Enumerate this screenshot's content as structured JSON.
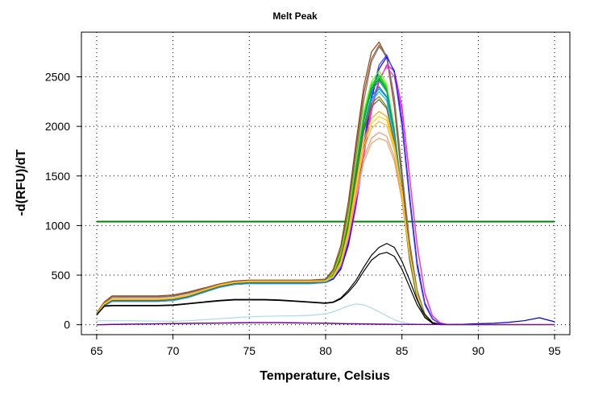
{
  "chart_data": {
    "type": "line",
    "title": "Melt Peak",
    "xlabel": "Temperature, Celsius",
    "ylabel": "-d(RFU)/dT",
    "xlim": [
      64,
      96
    ],
    "ylim": [
      -100,
      2950
    ],
    "xticks": [
      65,
      70,
      75,
      80,
      85,
      90,
      95
    ],
    "yticks": [
      0,
      500,
      1000,
      1500,
      2000,
      2500
    ],
    "grid": true,
    "legend": "none",
    "threshold": {
      "y": 1040,
      "x_range": [
        65,
        95
      ],
      "color": "#008000"
    },
    "x": [
      65,
      65.5,
      66,
      67,
      68,
      69,
      70,
      71,
      72,
      73,
      74,
      75,
      76,
      77,
      78,
      79,
      80,
      80.5,
      81,
      81.5,
      82,
      82.5,
      83,
      83.5,
      84,
      84.5,
      85,
      85.5,
      86,
      86.5,
      87,
      87.5,
      88,
      89,
      90,
      91,
      92,
      93,
      94,
      95
    ],
    "series": [
      {
        "color": "#8b4513",
        "values": [
          120,
          230,
          290,
          290,
          290,
          290,
          300,
          330,
          370,
          410,
          440,
          450,
          450,
          450,
          450,
          450,
          460,
          560,
          800,
          1250,
          1850,
          2400,
          2750,
          2850,
          2700,
          2200,
          1450,
          750,
          300,
          90,
          20,
          5,
          0,
          0,
          0,
          0,
          0,
          0,
          0,
          0
        ]
      },
      {
        "color": "#a0522d",
        "values": [
          115,
          220,
          280,
          280,
          280,
          280,
          290,
          320,
          365,
          405,
          435,
          445,
          445,
          445,
          445,
          445,
          455,
          540,
          760,
          1180,
          1780,
          2330,
          2680,
          2820,
          2690,
          2230,
          1500,
          800,
          330,
          100,
          25,
          5,
          0,
          0,
          0,
          0,
          0,
          0,
          0,
          0
        ]
      },
      {
        "color": "#808080",
        "values": [
          110,
          215,
          275,
          275,
          275,
          275,
          285,
          315,
          360,
          400,
          430,
          440,
          440,
          440,
          440,
          440,
          450,
          520,
          730,
          1120,
          1700,
          2250,
          2650,
          2800,
          2720,
          2300,
          1560,
          840,
          350,
          110,
          25,
          5,
          0,
          0,
          0,
          0,
          0,
          0,
          0,
          0
        ]
      },
      {
        "color": "#ff00ff",
        "values": [
          100,
          200,
          250,
          250,
          250,
          250,
          260,
          290,
          340,
          390,
          420,
          430,
          430,
          430,
          430,
          430,
          440,
          470,
          560,
          800,
          1200,
          1700,
          2150,
          2450,
          2620,
          2560,
          2200,
          1500,
          800,
          320,
          90,
          20,
          0,
          0,
          0,
          0,
          0,
          0,
          0,
          0
        ]
      },
      {
        "color": "#ff33cc",
        "values": [
          100,
          200,
          250,
          250,
          250,
          250,
          260,
          290,
          340,
          390,
          420,
          430,
          430,
          430,
          430,
          430,
          440,
          480,
          580,
          830,
          1250,
          1750,
          2200,
          2480,
          2600,
          2500,
          2150,
          1480,
          790,
          310,
          85,
          20,
          0,
          0,
          0,
          0,
          0,
          0,
          0,
          0
        ]
      },
      {
        "color": "#0000ff",
        "values": [
          95,
          195,
          245,
          245,
          245,
          245,
          255,
          285,
          335,
          385,
          415,
          425,
          425,
          425,
          425,
          425,
          425,
          460,
          560,
          820,
          1250,
          1780,
          2270,
          2580,
          2700,
          2560,
          2050,
          1300,
          620,
          220,
          60,
          10,
          0,
          0,
          0,
          0,
          0,
          0,
          0,
          0
        ]
      },
      {
        "color": "#4040ff",
        "values": [
          95,
          195,
          245,
          245,
          245,
          245,
          255,
          285,
          335,
          385,
          415,
          425,
          425,
          425,
          425,
          425,
          430,
          470,
          580,
          860,
          1300,
          1830,
          2320,
          2620,
          2720,
          2540,
          2000,
          1250,
          580,
          200,
          55,
          10,
          0,
          0,
          0,
          0,
          0,
          0,
          0,
          0
        ]
      },
      {
        "color": "#00cc00",
        "values": [
          100,
          200,
          240,
          240,
          240,
          240,
          250,
          280,
          330,
          380,
          410,
          420,
          420,
          420,
          420,
          420,
          435,
          500,
          680,
          1050,
          1600,
          2100,
          2400,
          2500,
          2380,
          1950,
          1300,
          650,
          250,
          70,
          15,
          0,
          0,
          0,
          0,
          0,
          0,
          0,
          0,
          0
        ]
      },
      {
        "color": "#00e000",
        "values": [
          100,
          200,
          240,
          240,
          240,
          240,
          250,
          280,
          330,
          380,
          410,
          420,
          420,
          420,
          420,
          420,
          440,
          510,
          700,
          1080,
          1620,
          2120,
          2420,
          2520,
          2400,
          1980,
          1320,
          670,
          260,
          75,
          15,
          0,
          0,
          0,
          0,
          0,
          0,
          0,
          0,
          0
        ]
      },
      {
        "color": "#33cc33",
        "values": [
          100,
          200,
          240,
          240,
          240,
          240,
          250,
          280,
          330,
          380,
          410,
          420,
          420,
          420,
          420,
          420,
          435,
          500,
          690,
          1060,
          1600,
          2100,
          2400,
          2500,
          2380,
          1950,
          1310,
          660,
          255,
          70,
          15,
          0,
          0,
          0,
          0,
          0,
          0,
          0,
          0,
          0
        ]
      },
      {
        "color": "#66ff00",
        "values": [
          100,
          200,
          240,
          240,
          240,
          240,
          250,
          280,
          330,
          380,
          410,
          420,
          420,
          420,
          420,
          420,
          440,
          520,
          720,
          1100,
          1650,
          2150,
          2450,
          2560,
          2420,
          1990,
          1330,
          680,
          265,
          75,
          15,
          0,
          0,
          0,
          0,
          0,
          0,
          0,
          0,
          0
        ]
      },
      {
        "color": "#009933",
        "values": [
          100,
          200,
          240,
          240,
          240,
          240,
          250,
          280,
          330,
          380,
          410,
          420,
          420,
          420,
          420,
          420,
          435,
          500,
          680,
          1040,
          1580,
          2070,
          2380,
          2480,
          2370,
          1960,
          1320,
          670,
          260,
          72,
          15,
          0,
          0,
          0,
          0,
          0,
          0,
          0,
          0,
          0
        ]
      },
      {
        "color": "#00aa66",
        "values": [
          95,
          190,
          235,
          235,
          235,
          235,
          245,
          275,
          325,
          375,
          405,
          415,
          415,
          415,
          415,
          415,
          430,
          495,
          670,
          1030,
          1560,
          2050,
          2360,
          2460,
          2350,
          1950,
          1320,
          680,
          265,
          75,
          15,
          0,
          0,
          0,
          0,
          0,
          0,
          0,
          0,
          0
        ]
      },
      {
        "color": "#008b8b",
        "values": [
          95,
          190,
          235,
          235,
          235,
          235,
          245,
          275,
          325,
          375,
          405,
          415,
          415,
          415,
          415,
          415,
          425,
          490,
          660,
          1010,
          1520,
          2000,
          2300,
          2400,
          2300,
          1920,
          1310,
          680,
          265,
          75,
          15,
          0,
          0,
          0,
          0,
          0,
          0,
          0,
          0,
          0
        ]
      },
      {
        "color": "#00bfff",
        "values": [
          95,
          190,
          235,
          235,
          235,
          235,
          245,
          275,
          325,
          375,
          405,
          415,
          415,
          415,
          415,
          415,
          425,
          480,
          640,
          980,
          1480,
          1950,
          2250,
          2350,
          2260,
          1900,
          1300,
          670,
          260,
          75,
          15,
          0,
          0,
          0,
          0,
          0,
          0,
          0,
          0,
          0
        ]
      },
      {
        "color": "#1e90ff",
        "values": [
          95,
          190,
          235,
          235,
          235,
          235,
          245,
          275,
          325,
          375,
          405,
          415,
          415,
          415,
          415,
          415,
          425,
          485,
          650,
          990,
          1490,
          1960,
          2270,
          2380,
          2290,
          1910,
          1310,
          680,
          265,
          75,
          15,
          0,
          0,
          0,
          0,
          0,
          0,
          0,
          0,
          0
        ]
      },
      {
        "color": "#808000",
        "values": [
          100,
          200,
          245,
          245,
          245,
          245,
          255,
          285,
          335,
          385,
          415,
          425,
          425,
          425,
          425,
          425,
          435,
          500,
          670,
          1020,
          1520,
          1980,
          2230,
          2300,
          2200,
          1850,
          1280,
          660,
          260,
          75,
          15,
          0,
          0,
          0,
          0,
          0,
          0,
          0,
          0,
          0
        ]
      },
      {
        "color": "#556b2f",
        "values": [
          100,
          200,
          245,
          245,
          245,
          245,
          255,
          285,
          335,
          385,
          415,
          425,
          425,
          425,
          425,
          425,
          435,
          500,
          660,
          1000,
          1500,
          1950,
          2200,
          2270,
          2180,
          1840,
          1270,
          660,
          260,
          75,
          15,
          0,
          0,
          0,
          0,
          0,
          0,
          0,
          0,
          0
        ]
      },
      {
        "color": "#ffa500",
        "values": [
          105,
          210,
          255,
          255,
          255,
          255,
          265,
          295,
          345,
          395,
          425,
          435,
          435,
          435,
          435,
          435,
          440,
          490,
          640,
          960,
          1430,
          1850,
          2080,
          2150,
          2100,
          1820,
          1320,
          720,
          300,
          90,
          20,
          0,
          0,
          0,
          0,
          0,
          0,
          0,
          0,
          0
        ]
      },
      {
        "color": "#ffb347",
        "values": [
          105,
          210,
          255,
          255,
          255,
          255,
          265,
          295,
          345,
          395,
          425,
          435,
          435,
          435,
          435,
          435,
          440,
          485,
          620,
          920,
          1360,
          1760,
          1980,
          2050,
          2010,
          1760,
          1300,
          720,
          300,
          90,
          20,
          0,
          0,
          0,
          0,
          0,
          0,
          0,
          0,
          0
        ]
      },
      {
        "color": "#f4a460",
        "values": [
          110,
          215,
          260,
          260,
          260,
          260,
          270,
          300,
          350,
          400,
          430,
          440,
          440,
          440,
          440,
          440,
          440,
          480,
          600,
          880,
          1280,
          1640,
          1830,
          1880,
          1850,
          1650,
          1250,
          700,
          290,
          85,
          20,
          0,
          0,
          0,
          0,
          0,
          0,
          0,
          0,
          0
        ]
      },
      {
        "color": "#e9967a",
        "values": [
          110,
          215,
          260,
          260,
          260,
          260,
          270,
          300,
          350,
          400,
          430,
          440,
          440,
          440,
          440,
          440,
          440,
          482,
          610,
          900,
          1310,
          1680,
          1880,
          1940,
          1900,
          1690,
          1270,
          710,
          295,
          88,
          20,
          0,
          0,
          0,
          0,
          0,
          0,
          0,
          0,
          0
        ]
      },
      {
        "color": "#ffd700",
        "values": [
          105,
          210,
          255,
          255,
          255,
          255,
          265,
          295,
          345,
          395,
          425,
          435,
          435,
          435,
          435,
          435,
          440,
          488,
          630,
          940,
          1400,
          1810,
          2030,
          2100,
          2060,
          1790,
          1310,
          720,
          300,
          90,
          20,
          0,
          0,
          0,
          0,
          0,
          0,
          0,
          0,
          0
        ]
      },
      {
        "color": "#000000",
        "values": [
          100,
          190,
          195,
          195,
          195,
          195,
          200,
          215,
          230,
          245,
          255,
          255,
          255,
          250,
          240,
          230,
          220,
          230,
          270,
          350,
          450,
          580,
          700,
          780,
          820,
          780,
          640,
          450,
          250,
          100,
          20,
          5,
          0,
          0,
          0,
          0,
          0,
          0,
          0,
          0
        ]
      },
      {
        "color": "#000000",
        "values": [
          100,
          185,
          190,
          190,
          190,
          190,
          195,
          210,
          225,
          240,
          250,
          250,
          250,
          245,
          235,
          225,
          215,
          225,
          260,
          330,
          420,
          540,
          650,
          710,
          730,
          690,
          560,
          380,
          200,
          75,
          15,
          0,
          0,
          0,
          0,
          0,
          0,
          0,
          0,
          0
        ]
      },
      {
        "color": "#add8e6",
        "values": [
          40,
          40,
          40,
          40,
          38,
          36,
          35,
          40,
          50,
          60,
          70,
          80,
          85,
          88,
          90,
          95,
          110,
          130,
          160,
          190,
          210,
          200,
          170,
          130,
          90,
          50,
          25,
          10,
          5,
          0,
          0,
          0,
          0,
          0,
          0,
          0,
          0,
          0,
          0,
          0
        ]
      },
      {
        "color": "#0000cd",
        "values": [
          0,
          0,
          2,
          4,
          6,
          8,
          10,
          12,
          14,
          16,
          18,
          20,
          20,
          20,
          18,
          16,
          14,
          12,
          10,
          9,
          8,
          7,
          6,
          5,
          5,
          4,
          4,
          3,
          3,
          3,
          3,
          3,
          3,
          5,
          10,
          15,
          25,
          40,
          70,
          30
        ]
      },
      {
        "color": "#800080",
        "values": [
          0,
          2,
          4,
          6,
          8,
          10,
          12,
          14,
          16,
          18,
          20,
          22,
          22,
          22,
          20,
          18,
          16,
          14,
          12,
          11,
          10,
          9,
          8,
          7,
          6,
          5,
          4,
          3,
          3,
          3,
          3,
          3,
          3,
          3,
          3,
          3,
          3,
          3,
          3,
          3
        ]
      }
    ]
  }
}
